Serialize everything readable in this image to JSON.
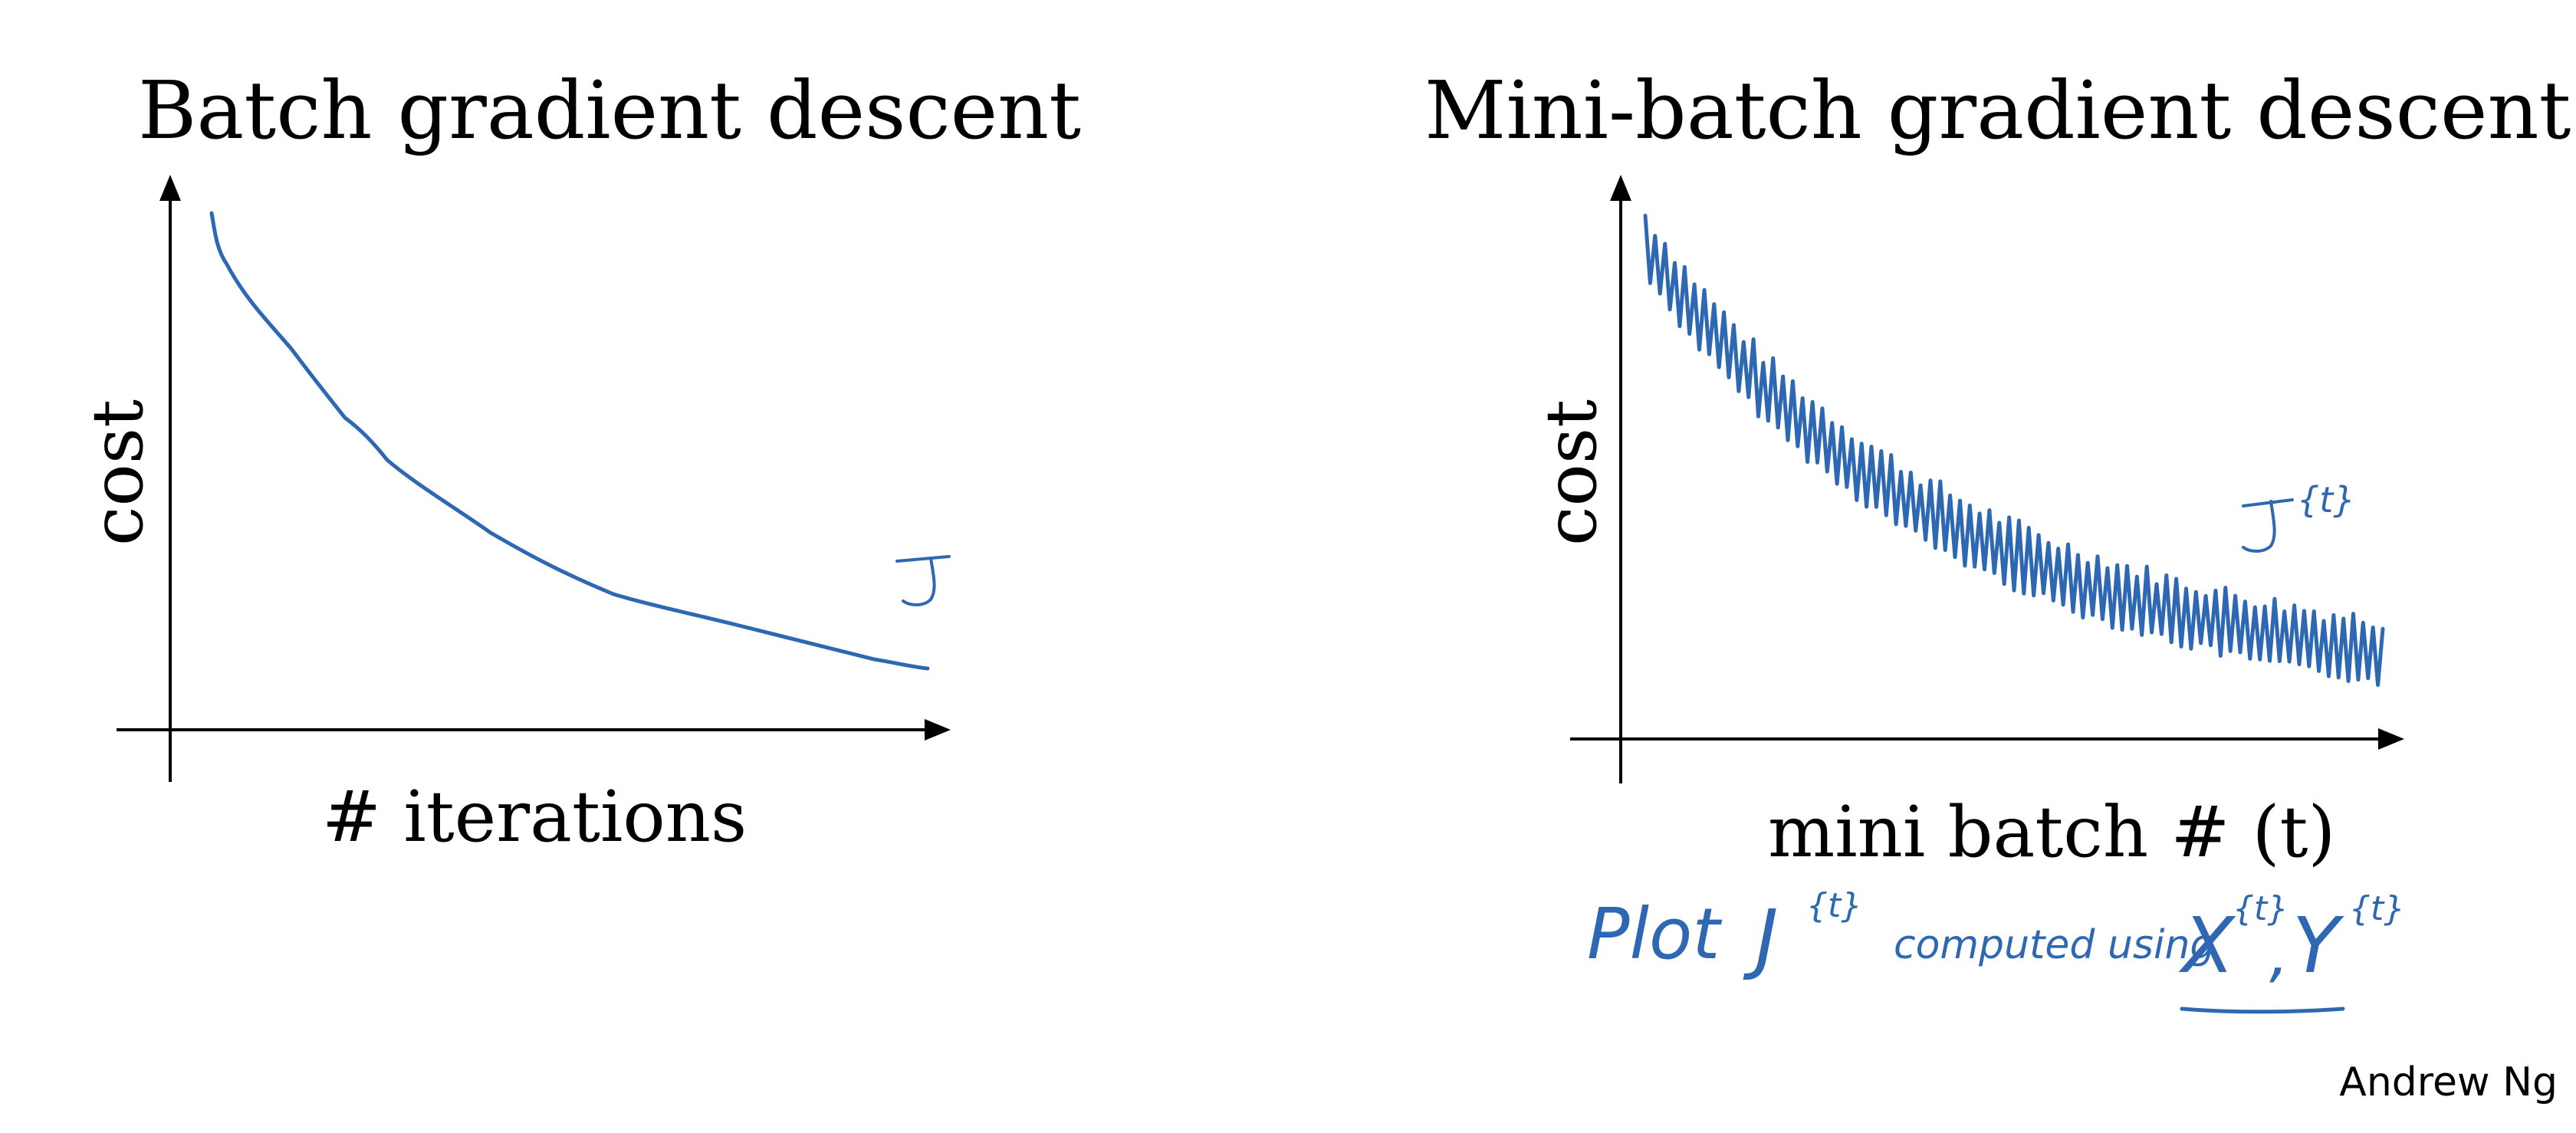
{
  "left_panel": {
    "title": "Batch gradient descent",
    "ylabel": "cost",
    "xlabel": "# iterations",
    "curve_label": "J"
  },
  "right_panel": {
    "title": "Mini-batch gradient descent",
    "ylabel": "cost",
    "xlabel": "mini batch # (t)",
    "curve_label": "J",
    "curve_label_sup": "{t}",
    "note": {
      "plot": "Plot",
      "j": "J",
      "j_sup": "{t}",
      "computed": "computed using",
      "x": "X",
      "x_sup": "{t}",
      "comma": ",",
      "y": "Y",
      "y_sup": "{t}"
    }
  },
  "credit": "Andrew Ng",
  "colors": {
    "ink": "#2e68b3",
    "text": "#000000"
  }
}
